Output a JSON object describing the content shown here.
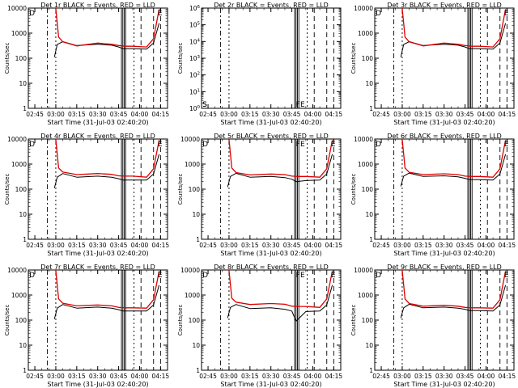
{
  "chart_data": [
    {
      "type": "line",
      "scale": "log",
      "title": "Det 1r BLACK = Events, RED = LLD",
      "xlabel": "Start Time (31-Jul-03 02:40:20)",
      "ylabel": "Counts/sec",
      "xlim": [
        "02:40:20",
        "04:20:00"
      ],
      "ylim": [
        1,
        10000
      ],
      "x_ticks": [
        "02:45",
        "03:00",
        "03:15",
        "03:30",
        "03:45",
        "04:00",
        "04:15"
      ],
      "y_ticks": [
        "1",
        "10",
        "100",
        "1000",
        "10000"
      ],
      "flags": [
        "D",
        "E"
      ],
      "series": [
        {
          "color": "#000000",
          "x": [
            "02:59",
            "03:01",
            "03:05",
            "03:15",
            "03:30",
            "03:40",
            "03:45",
            "03:48",
            "03:55",
            "04:05",
            "04:10",
            "04:14"
          ],
          "y": [
            110,
            350,
            460,
            320,
            360,
            330,
            280,
            240,
            240,
            230,
            400,
            2500
          ]
        },
        {
          "color": "#e00000",
          "x": [
            "03:00",
            "03:02",
            "03:05",
            "03:15",
            "03:30",
            "03:40",
            "03:45",
            "03:50",
            "03:55",
            "04:05",
            "04:10",
            "04:14"
          ],
          "y": [
            10000,
            700,
            450,
            310,
            400,
            360,
            320,
            300,
            300,
            280,
            600,
            9000
          ]
        }
      ]
    },
    {
      "type": "line",
      "scale": "log",
      "title": "Det 2r BLACK = Events, RED = LLD",
      "xlabel": "Start Time (31-Jul-03 02:40:20)",
      "ylabel": "Counts/sec",
      "xlim": [
        "02:40:20",
        "04:20:00"
      ],
      "ylim": [
        1,
        1000000
      ],
      "x_ticks": [
        "02:45",
        "03:00",
        "03:15",
        "03:30",
        "03:45",
        "04:00",
        "04:15"
      ],
      "y_ticks": [
        "10^0",
        "10^1",
        "10^2",
        "10^3",
        "10^4",
        "10^5",
        "10^6"
      ],
      "flags": [
        "S",
        "FE",
        "S"
      ],
      "series": []
    },
    {
      "type": "line",
      "scale": "log",
      "title": "Det 3r BLACK = Events, RED = LLD",
      "xlabel": "Start Time (31-Jul-03 02:40:20)",
      "ylabel": "Counts/sec",
      "xlim": [
        "02:40:20",
        "04:20:00"
      ],
      "ylim": [
        1,
        10000
      ],
      "x_ticks": [
        "02:45",
        "03:00",
        "03:15",
        "03:30",
        "03:45",
        "04:00",
        "04:15"
      ],
      "y_ticks": [
        "1",
        "10",
        "100",
        "1000",
        "10000"
      ],
      "flags": [
        "D",
        "E"
      ],
      "series": [
        {
          "color": "#000000",
          "x": [
            "02:59",
            "03:01",
            "03:05",
            "03:15",
            "03:30",
            "03:40",
            "03:45",
            "03:48",
            "03:55",
            "04:05",
            "04:10",
            "04:14"
          ],
          "y": [
            110,
            350,
            460,
            320,
            360,
            330,
            280,
            240,
            240,
            230,
            400,
            2500
          ]
        },
        {
          "color": "#e00000",
          "x": [
            "03:00",
            "03:02",
            "03:05",
            "03:15",
            "03:30",
            "03:40",
            "03:45",
            "03:50",
            "03:55",
            "04:05",
            "04:10",
            "04:14"
          ],
          "y": [
            10000,
            700,
            450,
            310,
            400,
            360,
            320,
            300,
            300,
            280,
            600,
            9000
          ]
        }
      ]
    },
    {
      "type": "line",
      "scale": "log",
      "title": "Det 4r BLACK = Events, RED = LLD",
      "xlabel": "Start Time (31-Jul-03 02:40:20)",
      "ylabel": "Counts/sec",
      "xlim": [
        "02:40:20",
        "04:20:00"
      ],
      "ylim": [
        1,
        10000
      ],
      "x_ticks": [
        "02:45",
        "03:00",
        "03:15",
        "03:30",
        "03:45",
        "04:00",
        "04:15"
      ],
      "y_ticks": [
        "1",
        "10",
        "100",
        "1000",
        "10000"
      ],
      "flags": [
        "D",
        "E"
      ],
      "series": [
        {
          "color": "#000000",
          "x": [
            "02:59",
            "03:01",
            "03:05",
            "03:15",
            "03:30",
            "03:40",
            "03:45",
            "03:48",
            "03:55",
            "04:05",
            "04:10",
            "04:14"
          ],
          "y": [
            110,
            300,
            420,
            300,
            330,
            300,
            260,
            230,
            230,
            230,
            400,
            2500
          ]
        },
        {
          "color": "#e00000",
          "x": [
            "03:00",
            "03:02",
            "03:05",
            "03:15",
            "03:30",
            "03:40",
            "03:45",
            "03:50",
            "03:55",
            "04:05",
            "04:10",
            "04:14"
          ],
          "y": [
            10000,
            700,
            480,
            380,
            420,
            390,
            340,
            330,
            330,
            300,
            650,
            9000
          ]
        }
      ]
    },
    {
      "type": "line",
      "scale": "log",
      "title": "Det 5r BLACK = Events, RED = LLD",
      "xlabel": "Start Time (31-Jul-03 02:40:20)",
      "ylabel": "Counts/sec",
      "xlim": [
        "02:40:20",
        "04:20:00"
      ],
      "ylim": [
        1,
        10000
      ],
      "x_ticks": [
        "02:45",
        "03:00",
        "03:15",
        "03:30",
        "03:45",
        "04:00",
        "04:15"
      ],
      "y_ticks": [
        "1",
        "10",
        "100",
        "1000",
        "10000"
      ],
      "flags": [
        "D",
        "FE",
        "E"
      ],
      "series": [
        {
          "color": "#000000",
          "x": [
            "02:59",
            "03:01",
            "03:05",
            "03:15",
            "03:30",
            "03:40",
            "03:45",
            "03:48",
            "03:55",
            "04:05",
            "04:10",
            "04:14"
          ],
          "y": [
            120,
            320,
            430,
            300,
            320,
            290,
            250,
            200,
            220,
            230,
            400,
            2500
          ]
        },
        {
          "color": "#e00000",
          "x": [
            "03:00",
            "03:02",
            "03:05",
            "03:15",
            "03:30",
            "03:40",
            "03:45",
            "03:50",
            "03:55",
            "04:05",
            "04:10",
            "04:14"
          ],
          "y": [
            10000,
            700,
            460,
            370,
            400,
            380,
            330,
            320,
            320,
            300,
            650,
            9000
          ]
        }
      ]
    },
    {
      "type": "line",
      "scale": "log",
      "title": "Det 6r BLACK = Events, RED = LLD",
      "xlabel": "Start Time (31-Jul-03 02:40:20)",
      "ylabel": "Counts/sec",
      "xlim": [
        "02:40:20",
        "04:20:00"
      ],
      "ylim": [
        1,
        10000
      ],
      "x_ticks": [
        "02:45",
        "03:00",
        "03:15",
        "03:30",
        "03:45",
        "04:00",
        "04:15"
      ],
      "y_ticks": [
        "1",
        "10",
        "100",
        "1000",
        "10000"
      ],
      "flags": [
        "D",
        "E"
      ],
      "series": [
        {
          "color": "#000000",
          "x": [
            "02:59",
            "03:01",
            "03:05",
            "03:15",
            "03:30",
            "03:40",
            "03:45",
            "03:48",
            "03:55",
            "04:05",
            "04:10",
            "04:14"
          ],
          "y": [
            130,
            330,
            440,
            320,
            340,
            310,
            270,
            240,
            240,
            230,
            400,
            2500
          ]
        },
        {
          "color": "#e00000",
          "x": [
            "03:00",
            "03:02",
            "03:05",
            "03:15",
            "03:30",
            "03:40",
            "03:45",
            "03:50",
            "03:55",
            "04:05",
            "04:10",
            "04:14"
          ],
          "y": [
            10000,
            700,
            470,
            380,
            410,
            380,
            330,
            320,
            320,
            300,
            650,
            9000
          ]
        }
      ]
    },
    {
      "type": "line",
      "scale": "log",
      "title": "Det 7r BLACK = Events, RED = LLD",
      "xlabel": "Start Time (31-Jul-03 02:40:20)",
      "ylabel": "Counts/sec",
      "xlim": [
        "02:40:20",
        "04:20:00"
      ],
      "ylim": [
        1,
        10000
      ],
      "x_ticks": [
        "02:45",
        "03:00",
        "03:15",
        "03:30",
        "03:45",
        "04:00",
        "04:15"
      ],
      "y_ticks": [
        "1",
        "10",
        "100",
        "1000",
        "10000"
      ],
      "flags": [
        "D",
        "E"
      ],
      "series": [
        {
          "color": "#000000",
          "x": [
            "02:59",
            "03:01",
            "03:05",
            "03:15",
            "03:30",
            "03:40",
            "03:45",
            "03:48",
            "03:55",
            "04:05",
            "04:10",
            "04:14"
          ],
          "y": [
            110,
            300,
            420,
            300,
            330,
            300,
            260,
            230,
            230,
            230,
            400,
            2500
          ]
        },
        {
          "color": "#e00000",
          "x": [
            "03:00",
            "03:02",
            "03:05",
            "03:15",
            "03:30",
            "03:40",
            "03:45",
            "03:50",
            "03:55",
            "04:05",
            "04:10",
            "04:14"
          ],
          "y": [
            10000,
            700,
            470,
            370,
            400,
            370,
            320,
            310,
            310,
            300,
            650,
            9000
          ]
        }
      ]
    },
    {
      "type": "line",
      "scale": "log",
      "title": "Det 8r BLACK = Events, RED = LLD",
      "xlabel": "Start Time (31-Jul-03 02:40:20)",
      "ylabel": "Counts/sec",
      "xlim": [
        "02:40:20",
        "04:20:00"
      ],
      "ylim": [
        1,
        10000
      ],
      "x_ticks": [
        "02:45",
        "03:00",
        "03:15",
        "03:30",
        "03:45",
        "04:00",
        "04:15"
      ],
      "y_ticks": [
        "1",
        "10",
        "100",
        "1000",
        "10000"
      ],
      "flags": [
        "D",
        "FE",
        "E"
      ],
      "series": [
        {
          "color": "#000000",
          "x": [
            "02:59",
            "03:01",
            "03:05",
            "03:15",
            "03:30",
            "03:40",
            "03:45",
            "03:48",
            "03:55",
            "04:05",
            "04:10",
            "04:14"
          ],
          "y": [
            120,
            320,
            420,
            290,
            310,
            270,
            230,
            90,
            220,
            230,
            400,
            2500
          ]
        },
        {
          "color": "#e00000",
          "x": [
            "03:00",
            "03:02",
            "03:05",
            "03:15",
            "03:30",
            "03:40",
            "03:45",
            "03:50",
            "03:55",
            "04:05",
            "04:10",
            "04:14"
          ],
          "y": [
            10000,
            750,
            520,
            420,
            460,
            430,
            360,
            350,
            350,
            320,
            700,
            9000
          ]
        }
      ]
    },
    {
      "type": "line",
      "scale": "log",
      "title": "Det 9r BLACK = Events, RED = LLD",
      "xlabel": "Start Time (31-Jul-03 02:40:20)",
      "ylabel": "Counts/sec",
      "xlim": [
        "02:40:20",
        "04:20:00"
      ],
      "ylim": [
        1,
        10000
      ],
      "x_ticks": [
        "02:45",
        "03:00",
        "03:15",
        "03:30",
        "03:45",
        "04:00",
        "04:15"
      ],
      "y_ticks": [
        "1",
        "10",
        "100",
        "1000",
        "10000"
      ],
      "flags": [
        "D",
        "E"
      ],
      "series": [
        {
          "color": "#000000",
          "x": [
            "02:59",
            "03:01",
            "03:05",
            "03:15",
            "03:30",
            "03:40",
            "03:45",
            "03:48",
            "03:55",
            "04:05",
            "04:10",
            "04:14"
          ],
          "y": [
            120,
            310,
            430,
            310,
            330,
            300,
            270,
            240,
            240,
            230,
            400,
            2500
          ]
        },
        {
          "color": "#e00000",
          "x": [
            "03:00",
            "03:02",
            "03:05",
            "03:15",
            "03:30",
            "03:40",
            "03:45",
            "03:50",
            "03:55",
            "04:05",
            "04:10",
            "04:14"
          ],
          "y": [
            10000,
            700,
            460,
            360,
            390,
            360,
            320,
            310,
            310,
            300,
            650,
            9000
          ]
        }
      ]
    }
  ]
}
